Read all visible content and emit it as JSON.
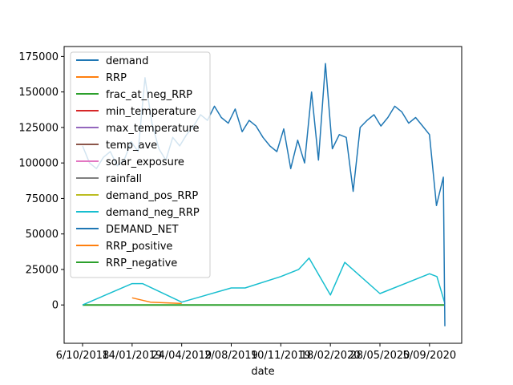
{
  "chart_data": {
    "type": "line",
    "title": "",
    "xlabel": "date",
    "ylabel": "",
    "ylim": [
      -27000,
      182000
    ],
    "x_ticks": [
      "6/10/2018",
      "14/01/2019",
      "24/04/2019",
      "2/08/2019",
      "10/11/2019",
      "18/02/2020",
      "28/05/2020",
      "5/09/2020"
    ],
    "y_ticks": [
      0,
      25000,
      50000,
      75000,
      100000,
      125000,
      150000,
      175000
    ],
    "y_tick_labels": [
      "0",
      "25000",
      "50000",
      "75000",
      "100000",
      "125000",
      "150000",
      "175000"
    ],
    "grid": false,
    "legend_position": "upper-left",
    "series": [
      {
        "name": "demand",
        "color": "#1f77b4"
      },
      {
        "name": "RRP",
        "color": "#ff7f0e"
      },
      {
        "name": "frac_at_neg_RRP",
        "color": "#2ca02c"
      },
      {
        "name": "min_temperature",
        "color": "#d62728"
      },
      {
        "name": "max_temperature",
        "color": "#9467bd"
      },
      {
        "name": "temp_ave",
        "color": "#8c564b"
      },
      {
        "name": "solar_exposure",
        "color": "#e377c2"
      },
      {
        "name": "rainfall",
        "color": "#7f7f7f"
      },
      {
        "name": "demand_pos_RRP",
        "color": "#bcbd22"
      },
      {
        "name": "demand_neg_RRP",
        "color": "#17becf"
      },
      {
        "name": "DEMAND_NET",
        "color": "#1f77b4"
      },
      {
        "name": "RRP_positive",
        "color": "#ff7f0e"
      },
      {
        "name": "RRP_negative",
        "color": "#2ca02c"
      }
    ],
    "demand_series": {
      "x": [
        "6/10/2018",
        "20/10/2018",
        "3/11/2018",
        "17/11/2018",
        "1/12/2018",
        "15/12/2018",
        "29/12/2018",
        "12/01/2019",
        "26/01/2019",
        "9/02/2019",
        "23/02/2019",
        "9/03/2019",
        "23/03/2019",
        "6/04/2019",
        "20/04/2019",
        "4/05/2019",
        "18/05/2019",
        "1/06/2019",
        "15/06/2019",
        "29/06/2019",
        "13/07/2019",
        "27/07/2019",
        "10/08/2019",
        "24/08/2019",
        "7/09/2019",
        "21/09/2019",
        "5/10/2019",
        "19/10/2019",
        "2/11/2019",
        "16/11/2019",
        "30/11/2019",
        "14/12/2019",
        "28/12/2019",
        "11/01/2020",
        "25/01/2020",
        "8/02/2020",
        "22/02/2020",
        "7/03/2020",
        "21/03/2020",
        "4/04/2020",
        "18/04/2020",
        "2/05/2020",
        "16/05/2020",
        "30/05/2020",
        "13/06/2020",
        "27/06/2020",
        "11/07/2020",
        "25/07/2020",
        "8/08/2020",
        "22/08/2020",
        "5/09/2020",
        "19/09/2020",
        "3/10/2020",
        "6/10/2020"
      ],
      "y": [
        112000,
        100000,
        96000,
        104000,
        108000,
        98000,
        102000,
        115000,
        108000,
        160000,
        128000,
        110000,
        102000,
        118000,
        112000,
        120000,
        126000,
        134000,
        130000,
        140000,
        132000,
        128000,
        138000,
        122000,
        130000,
        126000,
        118000,
        112000,
        108000,
        124000,
        96000,
        116000,
        100000,
        150000,
        102000,
        170000,
        110000,
        120000,
        118000,
        80000,
        125000,
        130000,
        134000,
        126000,
        132000,
        140000,
        136000,
        128000,
        132000,
        126000,
        120000,
        70000,
        90000,
        -15000
      ]
    },
    "demand_neg_series": {
      "x": [
        "6/10/2018",
        "14/01/2019",
        "4/02/2019",
        "24/04/2019",
        "2/08/2019",
        "30/08/2019",
        "10/11/2019",
        "16/12/2019",
        "6/01/2020",
        "18/02/2020",
        "18/03/2020",
        "28/05/2020",
        "5/09/2020",
        "20/09/2020",
        "6/10/2020"
      ],
      "y": [
        0,
        15000,
        15000,
        2000,
        12000,
        12000,
        20000,
        25000,
        33000,
        7000,
        30000,
        8000,
        22000,
        20000,
        1000
      ]
    },
    "rrp_spikes": {
      "x": [
        "14/01/2019",
        "20/02/2019",
        "24/04/2019"
      ],
      "y": [
        5000,
        2000,
        1000
      ]
    }
  }
}
